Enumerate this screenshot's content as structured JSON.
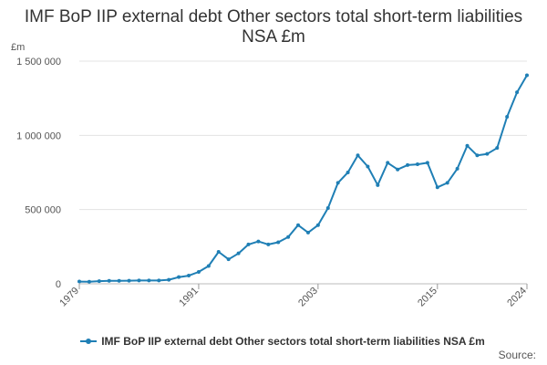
{
  "chart_data": {
    "type": "line",
    "title": "IMF BoP IIP external debt Other sectors total short-term liabilities NSA £m",
    "ylabel": "£m",
    "xlabel": "",
    "ylim": [
      0,
      1500000
    ],
    "yticks": [
      0,
      500000,
      1000000,
      1500000
    ],
    "ytick_labels": [
      "0",
      "500 000",
      "1 000 000",
      "1 500 000"
    ],
    "xlim": [
      1979,
      2024
    ],
    "xticks": [
      1979,
      1991,
      2003,
      2015,
      2024
    ],
    "xtick_labels": [
      "1979",
      "1991",
      "2003",
      "2015",
      "2024"
    ],
    "grid": true,
    "legend_position": "bottom",
    "color": "#1F7FB5",
    "x": [
      1979,
      1980,
      1981,
      1982,
      1983,
      1984,
      1985,
      1986,
      1987,
      1988,
      1989,
      1990,
      1991,
      1992,
      1993,
      1994,
      1995,
      1996,
      1997,
      1998,
      1999,
      2000,
      2001,
      2002,
      2003,
      2004,
      2005,
      2006,
      2007,
      2008,
      2009,
      2010,
      2011,
      2012,
      2013,
      2014,
      2015,
      2016,
      2017,
      2018,
      2019,
      2020,
      2021,
      2022,
      2023,
      2024
    ],
    "series": [
      {
        "name": "IMF BoP IIP external debt Other sectors total short-term liabilities NSA £m",
        "values": [
          15000,
          14000,
          18000,
          20000,
          20000,
          21000,
          22000,
          22000,
          22000,
          27000,
          45000,
          55000,
          80000,
          120000,
          215000,
          165000,
          205000,
          265000,
          285000,
          265000,
          280000,
          315000,
          395000,
          345000,
          395000,
          510000,
          680000,
          750000,
          865000,
          790000,
          665000,
          815000,
          770000,
          800000,
          805000,
          815000,
          650000,
          680000,
          775000,
          930000,
          865000,
          875000,
          915000,
          1125000,
          1290000,
          1405000
        ]
      }
    ]
  },
  "legend": {
    "label": "IMF BoP IIP external debt Other sectors total short-term liabilities NSA £m"
  },
  "source": {
    "label": "Source:"
  }
}
